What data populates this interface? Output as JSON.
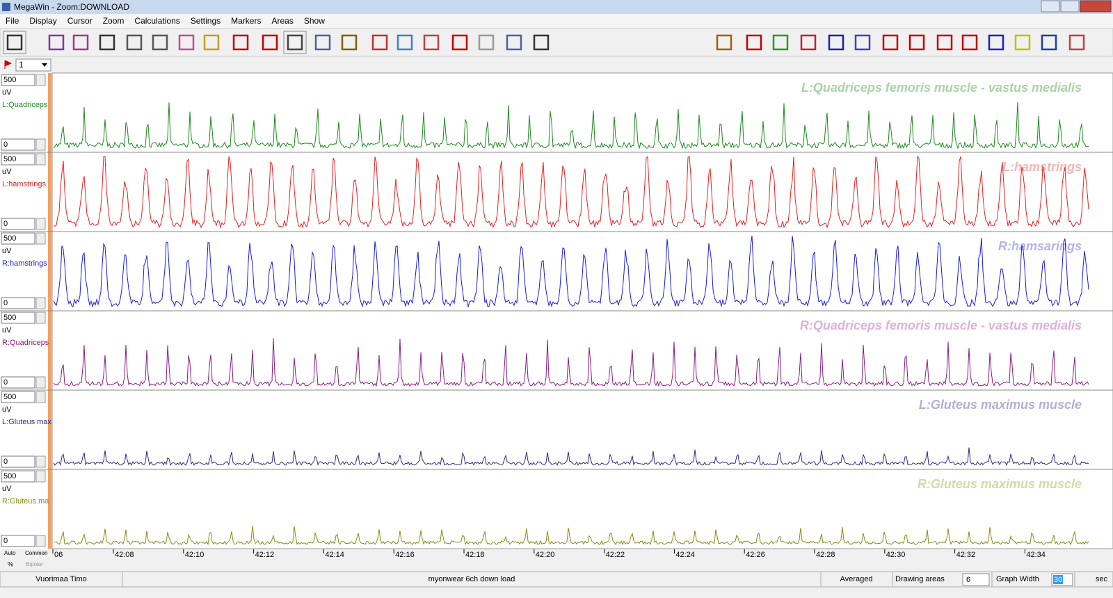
{
  "window": {
    "title": "MegaWin - Zoom:DOWNLOAD"
  },
  "menu": [
    "File",
    "Display",
    "Cursor",
    "Zoom",
    "Calculations",
    "Settings",
    "Markers",
    "Areas",
    "Show"
  ],
  "marker_select": "1",
  "channels": [
    {
      "scale_max": 500,
      "unit": "uV",
      "short_label": "L:Quadriceps",
      "title": "L:Quadriceps femoris muscle - vastus medialis",
      "scale_min": 0,
      "color": "#1a8a1a",
      "title_color": "#a8d4a8"
    },
    {
      "scale_max": 500,
      "unit": "uV",
      "short_label": "L:hamstrings",
      "title": "L:hamstrings",
      "scale_min": 0,
      "color": "#e82020",
      "title_color": "#f4b4b4"
    },
    {
      "scale_max": 500,
      "unit": "uV",
      "short_label": "R:hamstrings",
      "title": "R:hamsarings",
      "scale_min": 0,
      "color": "#1a1ae0",
      "title_color": "#b4b4f0"
    },
    {
      "scale_max": 500,
      "unit": "uV",
      "short_label": "R:Quadriceps",
      "title": "R:Quadriceps femoris muscle - vastus medialis",
      "scale_min": 0,
      "color": "#8b1a8b",
      "title_color": "#e0b0dc"
    },
    {
      "scale_max": 500,
      "unit": "uV",
      "short_label": "L:Gluteus max",
      "title": "L:Gluteus maximus muscle",
      "scale_min": 0,
      "color": "#2a2a8a",
      "title_color": "#b0b0d8"
    },
    {
      "scale_max": 500,
      "unit": "uV",
      "short_label": "R:Gluteus ma",
      "title": "R:Gluteus maximus muscle",
      "scale_min": 0,
      "color": "#8a8a10",
      "title_color": "#d8d8a8"
    }
  ],
  "time_axis": [
    "06",
    "42:08",
    "42:10",
    "42:12",
    "42:14",
    "42:16",
    "42:18",
    "42:20",
    "42:22",
    "42:24",
    "42:26",
    "42:28",
    "42:30",
    "42:32",
    "42:34"
  ],
  "scale_options": {
    "auto": "Auto",
    "common": "Common",
    "percent": "%",
    "bipolar": "Bipolar"
  },
  "status": {
    "user": "Vuorimaa Timo",
    "file": "myonwear 6ch down load",
    "mode": "Averaged",
    "drawing_areas_label": "Drawing areas",
    "drawing_areas": "6",
    "graph_width_label": "Graph Width",
    "graph_width": "30",
    "unit": "sec"
  }
}
